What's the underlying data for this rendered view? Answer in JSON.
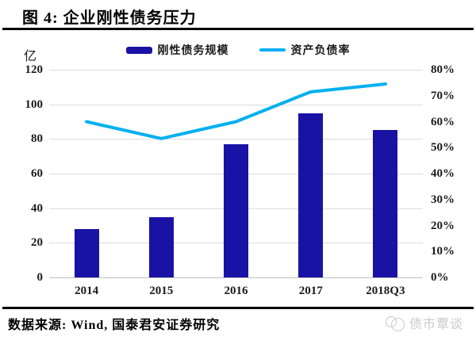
{
  "title": "图 4: 企业刚性债务压力",
  "source": "数据来源: Wind, 国泰君安证券研究",
  "watermark": "债市覃谈",
  "colors": {
    "bar": "#1a12a5",
    "line": "#00b0f0",
    "grid": "#dcdcdc",
    "rule": "#000000",
    "watermark_text": "#c9c9c9"
  },
  "legend": {
    "bar_label": "刚性债务规模",
    "line_label": "资产负债率"
  },
  "chart_data": {
    "type": "bar",
    "subtype": "bar+line combo",
    "title": "企业刚性债务压力",
    "categories": [
      "2014",
      "2015",
      "2016",
      "2017",
      "2018Q3"
    ],
    "series": [
      {
        "name": "刚性债务规模",
        "type": "bar",
        "axis": "left",
        "unit": "亿",
        "values": [
          28,
          35,
          77,
          95,
          85
        ]
      },
      {
        "name": "资产负债率",
        "type": "line",
        "axis": "right",
        "unit": "%",
        "values": [
          60,
          53.5,
          60,
          71.5,
          74.5
        ]
      }
    ],
    "left_axis": {
      "label": "亿",
      "min": 0,
      "max": 120,
      "step": 20,
      "ticks": [
        120,
        100,
        80,
        60,
        40,
        20,
        0
      ]
    },
    "right_axis": {
      "min": 0,
      "max": 80,
      "step": 10,
      "ticks": [
        "80%",
        "70%",
        "60%",
        "50%",
        "40%",
        "30%",
        "20%",
        "10%",
        "0%"
      ]
    },
    "grid": true,
    "legend_position": "top"
  }
}
